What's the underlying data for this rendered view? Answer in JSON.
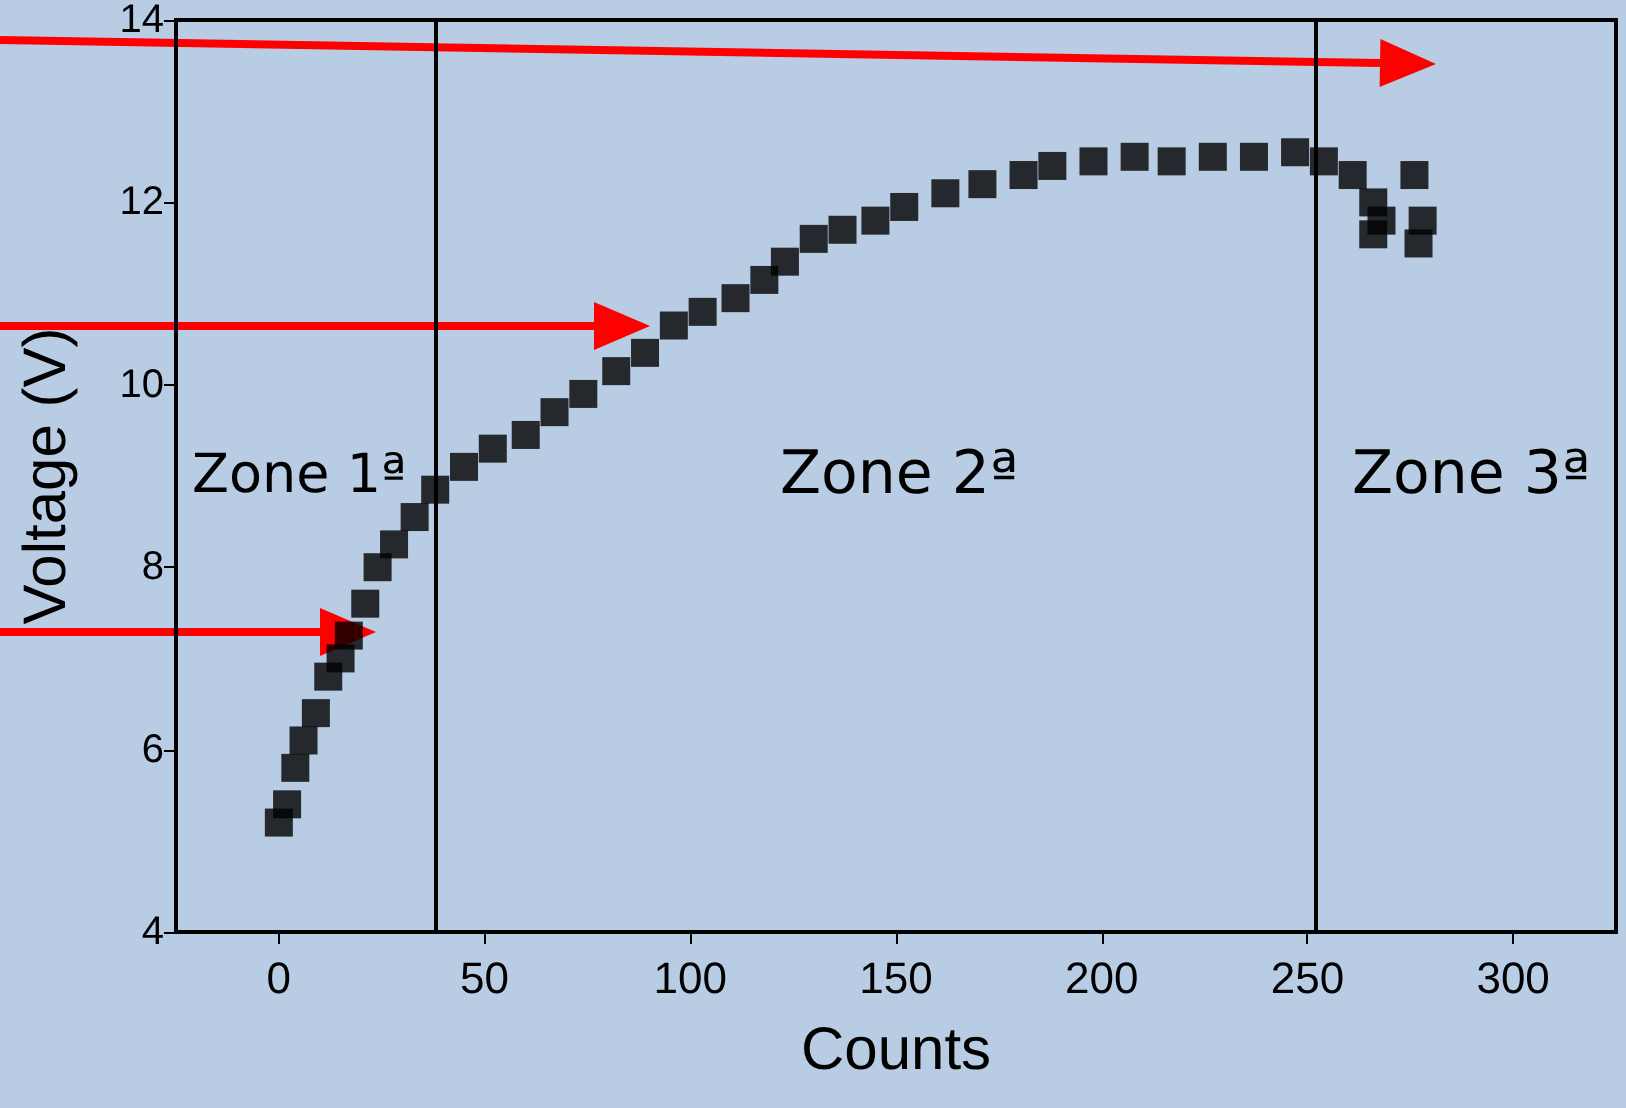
{
  "chart_data": {
    "type": "scatter",
    "xlabel": "Counts",
    "ylabel": "Voltage (V)",
    "xlim": [
      -25,
      325
    ],
    "xticks": [
      0,
      50,
      100,
      150,
      200,
      250,
      300
    ],
    "ylim": [
      4,
      14
    ],
    "yticks": [
      4,
      6,
      8,
      10,
      12,
      14
    ],
    "grid": false,
    "marker": "square",
    "series": [
      {
        "color": "#000000",
        "x": [
          0,
          2,
          4,
          6,
          9,
          12,
          15,
          17,
          21,
          24,
          28,
          33,
          38,
          45,
          52,
          60,
          67,
          74,
          82,
          89,
          96,
          103,
          111,
          118,
          123,
          130,
          137,
          145,
          152,
          162,
          171,
          181,
          188,
          198,
          208,
          217,
          227,
          237,
          247,
          254,
          261,
          266,
          268,
          266,
          276,
          278,
          277
        ],
        "values": [
          5.2,
          5.4,
          5.8,
          6.1,
          6.4,
          6.8,
          7.0,
          7.25,
          7.6,
          8.0,
          8.25,
          8.55,
          8.85,
          9.1,
          9.3,
          9.45,
          9.7,
          9.9,
          10.15,
          10.35,
          10.65,
          10.8,
          10.95,
          11.15,
          11.35,
          11.6,
          11.7,
          11.8,
          11.95,
          12.1,
          12.2,
          12.3,
          12.4,
          12.45,
          12.5,
          12.45,
          12.5,
          12.5,
          12.55,
          12.45,
          12.3,
          12.0,
          11.8,
          11.65,
          12.3,
          11.8,
          11.55
        ]
      }
    ],
    "ref_lines": [
      {
        "axis": "x",
        "value": 38,
        "color": "#000000"
      },
      {
        "axis": "x",
        "value": 252,
        "color": "#000000"
      }
    ],
    "annotations": [
      "Zone 1ª",
      "Zone 2ª",
      "Zone 3ª"
    ]
  }
}
